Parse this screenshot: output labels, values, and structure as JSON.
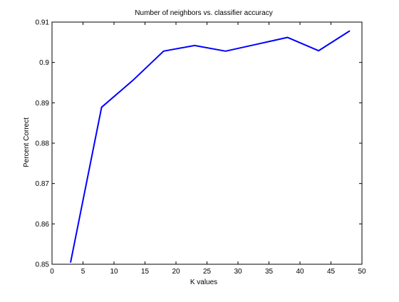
{
  "chart_data": {
    "type": "line",
    "title": "Number of neighbors vs. classifier accuracy",
    "xlabel": "K values",
    "ylabel": "Percent Correct",
    "xlim": [
      0,
      50
    ],
    "ylim": [
      0.85,
      0.91
    ],
    "xticks": [
      0,
      5,
      10,
      15,
      20,
      25,
      30,
      35,
      40,
      45,
      50
    ],
    "xtick_labels": [
      "0",
      "5",
      "10",
      "15",
      "20",
      "25",
      "30",
      "35",
      "40",
      "45",
      "50"
    ],
    "yticks": [
      0.85,
      0.86,
      0.87,
      0.88,
      0.89,
      0.9,
      0.91
    ],
    "ytick_labels": [
      "0.85",
      "0.86",
      "0.87",
      "0.88",
      "0.89",
      "0.9",
      "0.91"
    ],
    "grid": false,
    "legend": "none",
    "series": [
      {
        "color": "#0000ff",
        "x": [
          3,
          8,
          13,
          18,
          23,
          28,
          33,
          38,
          43,
          48
        ],
        "y": [
          0.8505,
          0.8889,
          0.8955,
          0.9028,
          0.9042,
          0.9028,
          0.9045,
          0.9062,
          0.9029,
          0.9078
        ]
      }
    ]
  }
}
